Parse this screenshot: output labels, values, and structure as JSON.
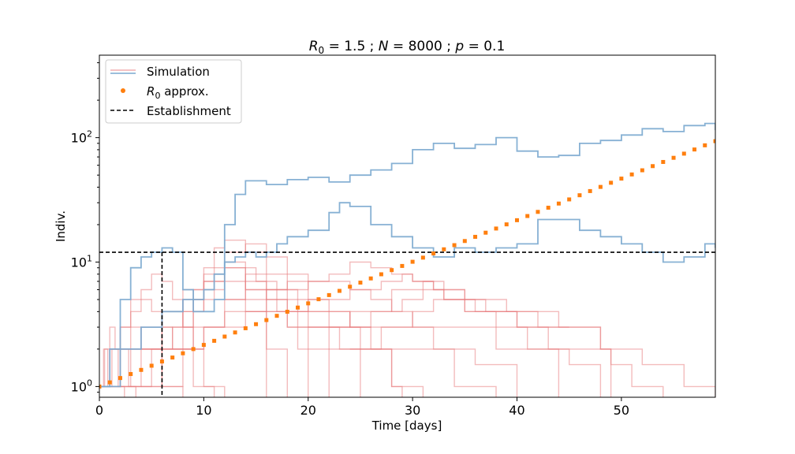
{
  "chart_data": {
    "type": "line",
    "title": "R_0 = 1.5 ; N = 8000 ; p = 0.1",
    "title_parts": {
      "r0_symbol": "R",
      "r0_sub": "0",
      "r0_value": " = 1.5 ; ",
      "n_symbol": "N",
      "n_value": " = 8000 ; ",
      "p_symbol": "p",
      "p_value": " = 0.1"
    },
    "xlabel": "Time [days]",
    "ylabel": "Indiv.",
    "xlim": [
      0,
      59
    ],
    "ylim": [
      0.82,
      460
    ],
    "yscale": "log",
    "xticks": [
      0,
      10,
      20,
      30,
      40,
      50
    ],
    "yticks": [
      1,
      10,
      100
    ],
    "ytick_labels": [
      {
        "base": "10",
        "exp": "0"
      },
      {
        "base": "10",
        "exp": "1"
      },
      {
        "base": "10",
        "exp": "2"
      }
    ],
    "grid": false,
    "legend": {
      "placement": "top-left",
      "entries": [
        {
          "label": "Simulation",
          "style": "line-pair"
        },
        {
          "label_symbol": "R",
          "label_sub": "0",
          "label_rest": " approx.",
          "style": "marker"
        },
        {
          "label": "Establishment",
          "style": "dashed"
        }
      ]
    },
    "colors": {
      "extinct": "#e8797c",
      "established": "#7aa9cf",
      "approx": "#ff7f0e",
      "threshold": "#000000"
    },
    "establishment": {
      "threshold": 12,
      "time": 6
    },
    "approx_series": {
      "name": "R0 approx.",
      "x": [
        0,
        1,
        2,
        3,
        4,
        5,
        6,
        7,
        8,
        9,
        10,
        11,
        12,
        13,
        14,
        15,
        16,
        17,
        18,
        19,
        20,
        21,
        22,
        23,
        24,
        25,
        26,
        27,
        28,
        29,
        30,
        31,
        32,
        33,
        34,
        35,
        36,
        37,
        38,
        39,
        40,
        41,
        42,
        43,
        44,
        45,
        46,
        47,
        48,
        49,
        50,
        51,
        52,
        53,
        54,
        55,
        56,
        57,
        58,
        59
      ],
      "y": [
        1.0,
        1.08,
        1.17,
        1.26,
        1.36,
        1.47,
        1.59,
        1.71,
        1.85,
        2.0,
        2.16,
        2.33,
        2.52,
        2.72,
        2.94,
        3.17,
        3.42,
        3.7,
        3.99,
        4.31,
        4.66,
        5.03,
        5.43,
        5.87,
        6.34,
        6.84,
        7.39,
        7.98,
        8.62,
        9.31,
        10.06,
        10.86,
        11.73,
        12.67,
        13.68,
        14.77,
        15.96,
        17.23,
        18.61,
        20.1,
        21.71,
        23.45,
        25.32,
        27.35,
        29.54,
        31.9,
        34.45,
        37.21,
        40.19,
        43.4,
        46.87,
        50.62,
        54.67,
        59.05,
        63.77,
        68.87,
        74.38,
        80.33,
        86.76,
        93.7
      ]
    },
    "extinct_series": [
      {
        "x": [
          0,
          0.4,
          0.8,
          1.2,
          1.8,
          2.4
        ],
        "y": [
          1,
          2,
          1,
          2,
          1,
          0.8
        ]
      },
      {
        "x": [
          0,
          0.5,
          1.0,
          1.5,
          2.0,
          2.8,
          3.5
        ],
        "y": [
          1,
          2,
          3,
          2,
          2,
          1,
          0.8
        ]
      },
      {
        "x": [
          0.2,
          1.0,
          2.0,
          3.0,
          4.0,
          5.0,
          6.0,
          7.0,
          8.0
        ],
        "y": [
          1,
          2,
          2,
          3,
          2,
          2,
          1,
          1,
          0.8
        ]
      },
      {
        "x": [
          0,
          1,
          2,
          3,
          4,
          5,
          6,
          7,
          9,
          11
        ],
        "y": [
          1,
          2,
          3,
          4,
          5,
          4,
          3,
          2,
          1,
          0.8
        ]
      },
      {
        "x": [
          0,
          1,
          2,
          3,
          4,
          5,
          6,
          7,
          8,
          9,
          10,
          12
        ],
        "y": [
          1,
          2,
          3,
          5,
          6,
          8,
          7,
          5,
          3,
          2,
          1,
          0.8
        ]
      },
      {
        "x": [
          0,
          2,
          4,
          6,
          8,
          10,
          12,
          14,
          16
        ],
        "y": [
          1,
          2,
          3,
          4,
          6,
          9,
          7,
          4,
          0.8
        ]
      },
      {
        "x": [
          0,
          2,
          4,
          6,
          8,
          10,
          12,
          14,
          16,
          18
        ],
        "y": [
          1,
          2,
          2,
          3,
          5,
          7,
          9,
          6,
          2,
          0.8
        ]
      },
      {
        "x": [
          0,
          3,
          6,
          9,
          12,
          15,
          17,
          19,
          20
        ],
        "y": [
          1,
          2,
          4,
          6,
          9,
          7,
          4,
          2,
          0.8
        ]
      },
      {
        "x": [
          1,
          4,
          7,
          9,
          11,
          12,
          14,
          16,
          18,
          20,
          22
        ],
        "y": [
          1,
          2,
          3,
          5,
          8,
          10,
          7,
          5,
          3,
          2,
          0.8
        ]
      },
      {
        "x": [
          2,
          5,
          8,
          10,
          11,
          12,
          14,
          16,
          18,
          20,
          23,
          25
        ],
        "y": [
          1,
          2,
          4,
          8,
          13,
          15,
          12,
          8,
          4,
          3,
          2,
          0.8
        ]
      },
      {
        "x": [
          3,
          6,
          9,
          10,
          12,
          14,
          16,
          18,
          20,
          22,
          24,
          26,
          28,
          29
        ],
        "y": [
          1,
          2,
          4,
          7,
          12,
          14,
          11,
          8,
          5,
          4,
          3,
          2,
          1,
          0.8
        ]
      },
      {
        "x": [
          4,
          8,
          10,
          12,
          14,
          16,
          19,
          22,
          25,
          28,
          31
        ],
        "y": [
          1,
          2,
          3,
          5,
          8,
          6,
          4,
          3,
          2,
          1,
          0.8
        ]
      },
      {
        "x": [
          6,
          10,
          14,
          18,
          22,
          26,
          30,
          34,
          38
        ],
        "y": [
          2,
          3,
          4,
          3,
          2,
          2,
          2,
          1,
          0.8
        ]
      },
      {
        "x": [
          8,
          12,
          16,
          20,
          24,
          28,
          32,
          36,
          40
        ],
        "y": [
          3,
          4,
          5,
          4,
          3,
          3,
          2,
          1.5,
          0.8
        ]
      },
      {
        "x": [
          12,
          16,
          20,
          24,
          26,
          28,
          30,
          34,
          38,
          42,
          44
        ],
        "y": [
          5,
          6,
          7,
          6,
          5,
          4,
          3,
          3,
          2,
          2,
          0.8
        ]
      },
      {
        "x": [
          14,
          18,
          22,
          24,
          26,
          28,
          30,
          32,
          35,
          38,
          41,
          45,
          48
        ],
        "y": [
          6,
          7,
          8,
          10,
          9,
          8,
          7,
          6,
          4,
          3,
          2,
          1.5,
          0.8
        ]
      },
      {
        "x": [
          16,
          20,
          24,
          27,
          29,
          30,
          32,
          35,
          39,
          44,
          48,
          49
        ],
        "y": [
          4,
          5,
          6,
          7,
          8,
          7,
          6,
          5,
          4,
          3,
          2,
          0.8
        ]
      },
      {
        "x": [
          20,
          24,
          28,
          31,
          33,
          36,
          39,
          42,
          45
        ],
        "y": [
          3,
          4,
          6,
          7,
          5,
          4,
          4,
          3,
          3
        ]
      },
      {
        "x": [
          22,
          26,
          29,
          31,
          33,
          35,
          38,
          40,
          43,
          46,
          49,
          51,
          54
        ],
        "y": [
          3,
          4,
          5,
          6,
          5,
          4,
          4,
          3,
          2,
          2,
          1.5,
          1,
          0.8
        ]
      },
      {
        "x": [
          24,
          27,
          30,
          32,
          34,
          37,
          40,
          44,
          48,
          52,
          56,
          59
        ],
        "y": [
          2,
          3,
          4,
          5,
          5,
          4,
          3,
          3,
          2,
          1.5,
          1,
          0.8
        ]
      }
    ],
    "established_series": [
      {
        "x": [
          0,
          1,
          2,
          3,
          4,
          5,
          6,
          7,
          8,
          9,
          10,
          11,
          12,
          13,
          14,
          16,
          18,
          20,
          22,
          24,
          26,
          28,
          30,
          32,
          34,
          36,
          38,
          40,
          42,
          44,
          46,
          48,
          50,
          52,
          54,
          56,
          58,
          59
        ],
        "y": [
          1,
          2,
          5,
          9,
          11,
          12,
          13,
          12,
          6,
          4,
          4,
          5,
          20,
          35,
          45,
          42,
          46,
          48,
          44,
          50,
          55,
          62,
          80,
          90,
          82,
          88,
          100,
          78,
          70,
          72,
          90,
          95,
          105,
          118,
          112,
          125,
          130,
          115
        ]
      },
      {
        "x": [
          0,
          2,
          4,
          6,
          8,
          10,
          11,
          12,
          13,
          14,
          15,
          16,
          17,
          18,
          20,
          22,
          23,
          24,
          26,
          28,
          30,
          32,
          34,
          36,
          38,
          40,
          42,
          44,
          46,
          48,
          50,
          52,
          54,
          56,
          58,
          59
        ],
        "y": [
          1,
          2,
          3,
          4,
          5,
          6,
          8,
          10,
          11,
          12,
          11,
          12,
          14,
          16,
          18,
          25,
          30,
          28,
          20,
          16,
          13,
          11,
          13,
          12,
          13,
          14,
          22,
          22,
          18,
          16,
          14,
          12,
          10,
          11,
          14,
          13
        ]
      }
    ]
  }
}
